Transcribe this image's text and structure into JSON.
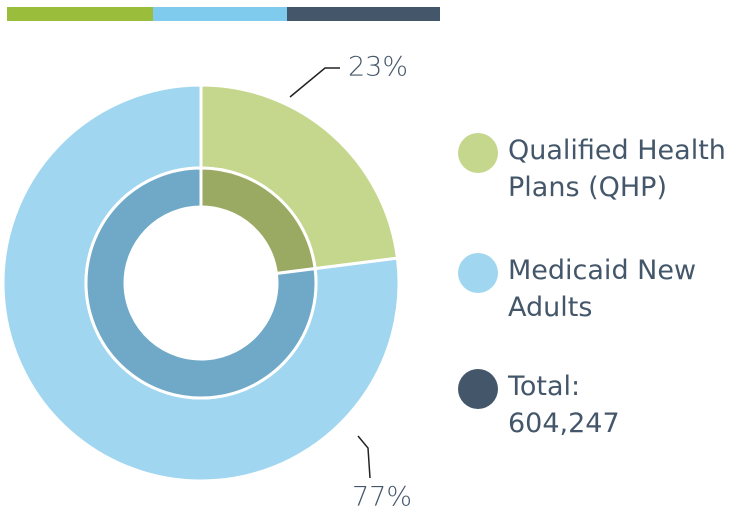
{
  "chart_data": {
    "type": "donut",
    "categories": [
      "Qualified Health Plans (QHP)",
      "Medicaid New Adults"
    ],
    "values": [
      23,
      77
    ],
    "value_labels": [
      "23%",
      "77%"
    ],
    "colors": [
      "#c5d68d",
      "#a0d6f0"
    ],
    "inner_colors": [
      "#9aaa63",
      "#6fa9c7"
    ],
    "total": {
      "name": "Total:",
      "value": 604247,
      "label": "604,247",
      "color": "#44576a"
    },
    "header_colors": [
      "#9abd3c",
      "#7ecbee",
      "#44576a"
    ]
  }
}
